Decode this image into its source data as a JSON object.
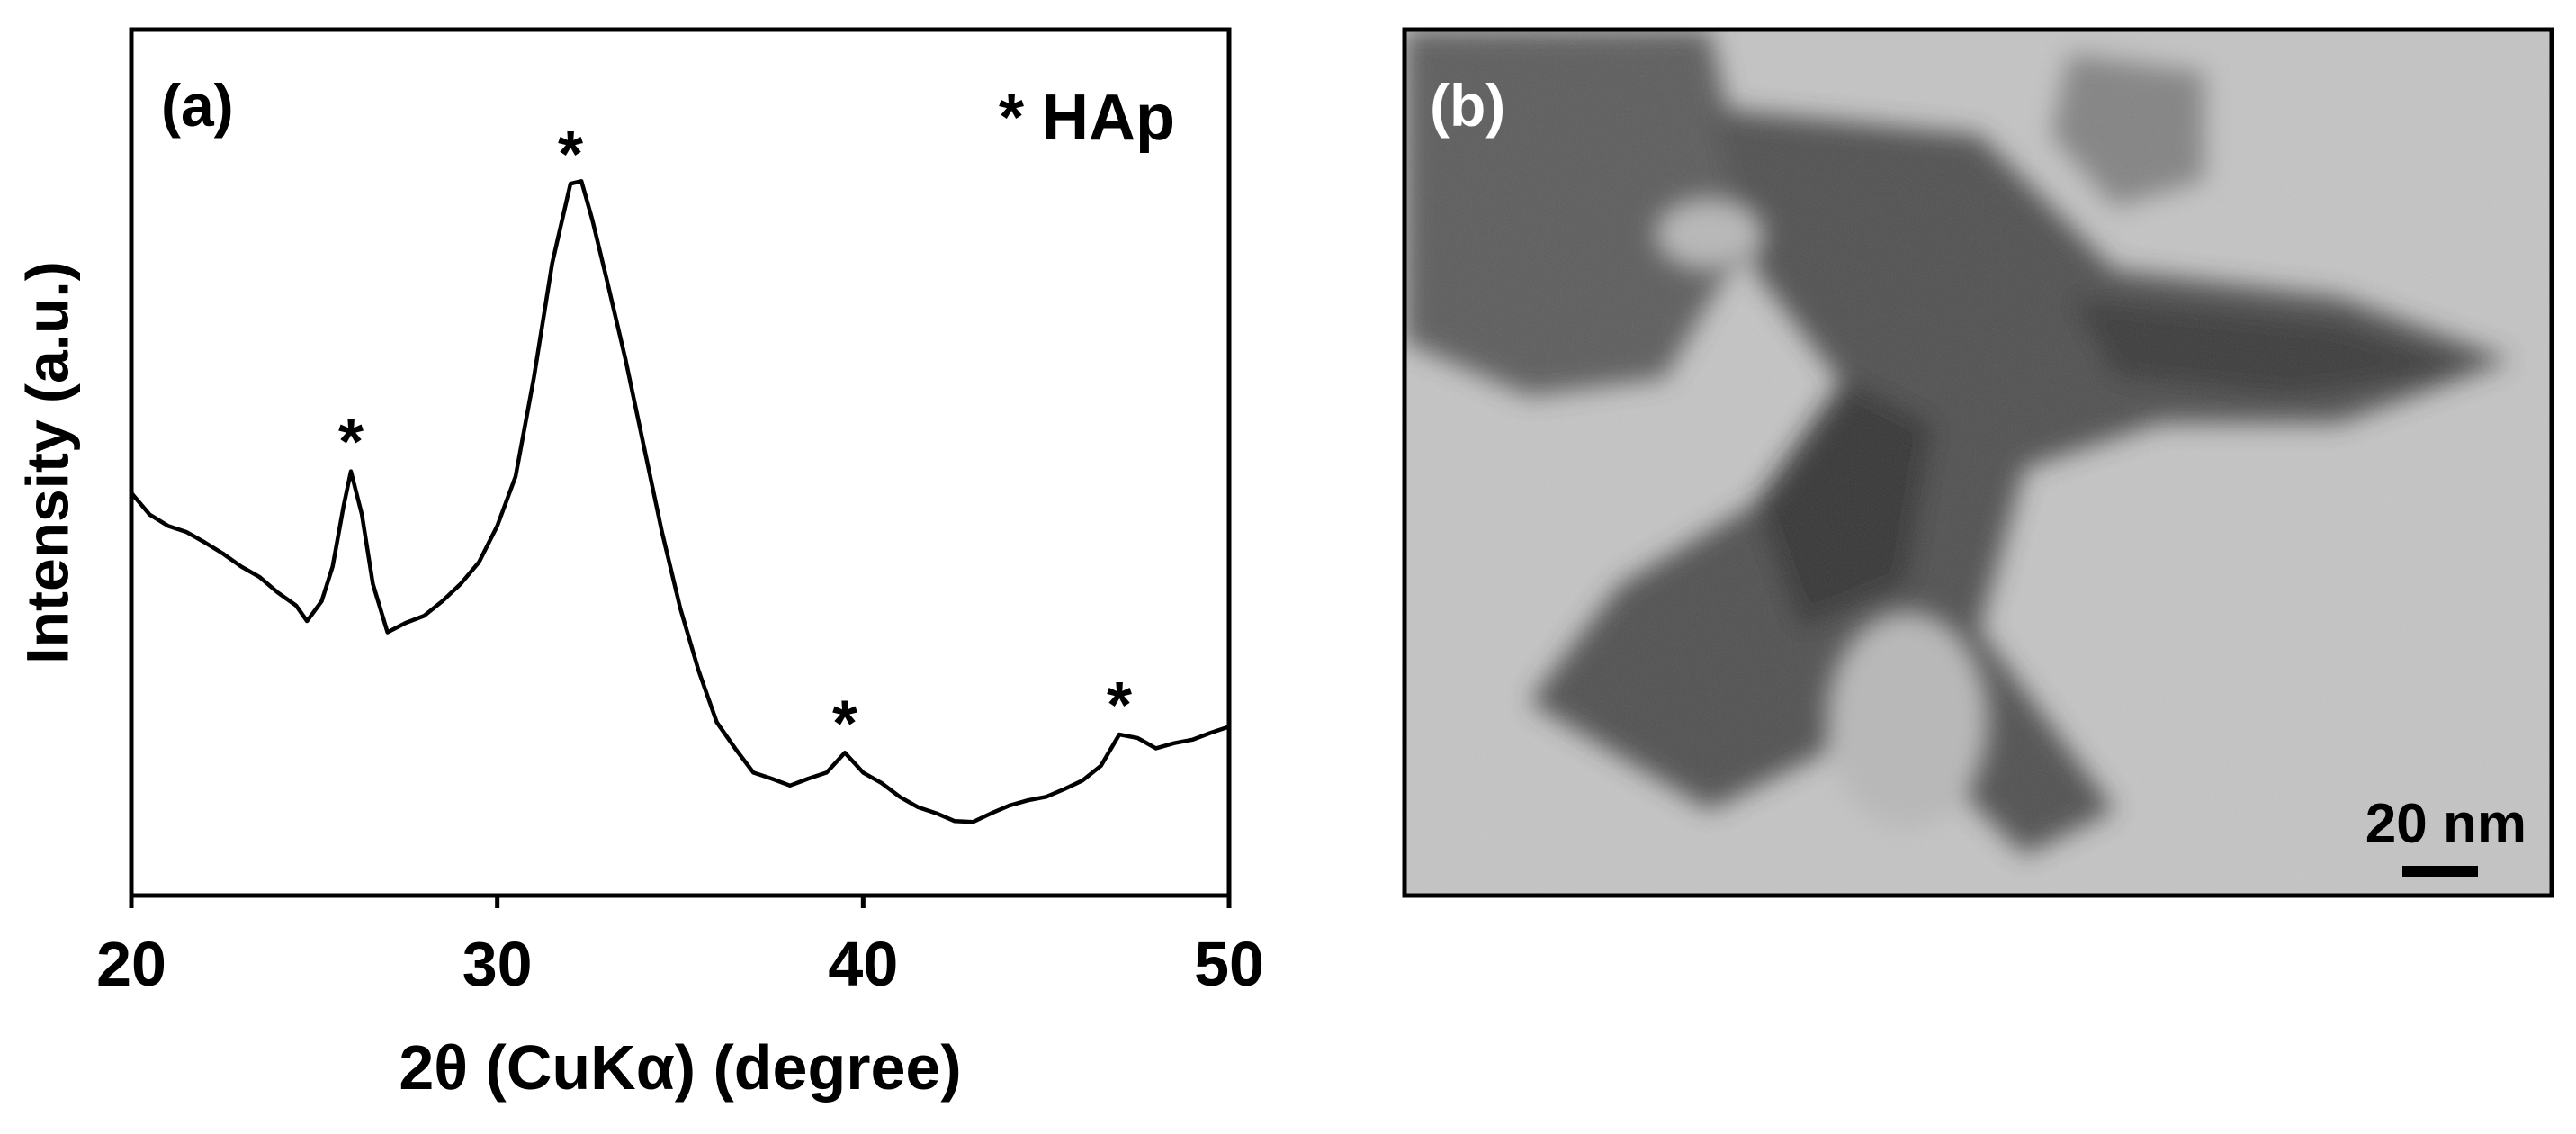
{
  "chart_data": {
    "type": "line",
    "panel_label": "(a)",
    "annotation_key": "* HAp",
    "x_label": "2θ (CuKα) (degree)",
    "y_label": "Intensity (a.u.)",
    "x": [
      20,
      20.5,
      21,
      21.5,
      22,
      22.5,
      23,
      23.5,
      24,
      24.5,
      24.8,
      25.2,
      25.5,
      25.8,
      26,
      26.3,
      26.6,
      27,
      27.5,
      28,
      28.5,
      29,
      29.5,
      30,
      30.5,
      31,
      31.5,
      32,
      32.3,
      32.6,
      33,
      33.5,
      34,
      34.5,
      35,
      35.5,
      36,
      36.5,
      37,
      37.5,
      38,
      38.5,
      39,
      39.5,
      40,
      40.5,
      41,
      41.5,
      42,
      42.5,
      43,
      43.5,
      44,
      44.5,
      45,
      45.5,
      46,
      46.5,
      47,
      47.5,
      48,
      48.5,
      49,
      49.5,
      50
    ],
    "series": [
      {
        "color": "#000000",
        "values": [
          46.5,
          44,
          42.7,
          42,
          40.8,
          39.5,
          38,
          36.8,
          35,
          33.5,
          31.7,
          34,
          38,
          45,
          49,
          44,
          36,
          30.4,
          31.5,
          32.3,
          34,
          36,
          38.5,
          42.7,
          48.4,
          59.8,
          73,
          82.2,
          82.5,
          78,
          71,
          62,
          52,
          42,
          33.2,
          26,
          20,
          17,
          14.2,
          13.5,
          12.7,
          13.5,
          14.2,
          16.5,
          14.2,
          13,
          11.4,
          10.2,
          9.5,
          8.6,
          8.5,
          9.5,
          10.4,
          11,
          11.4,
          12.3,
          13.3,
          15,
          18.6,
          18.2,
          17,
          17.6,
          18,
          18.8,
          19.5
        ]
      }
    ],
    "annotations": [
      {
        "text": "*",
        "x": 26
      },
      {
        "text": "*",
        "x": 32
      },
      {
        "text": "*",
        "x": 39.5
      },
      {
        "text": "*",
        "x": 47
      }
    ],
    "xlim": [
      20,
      50
    ],
    "ylim": [
      0,
      100
    ],
    "xticks": [
      20,
      30,
      40,
      50
    ]
  },
  "image_panel": {
    "label": "(b)",
    "scale_bar": "20 nm"
  }
}
